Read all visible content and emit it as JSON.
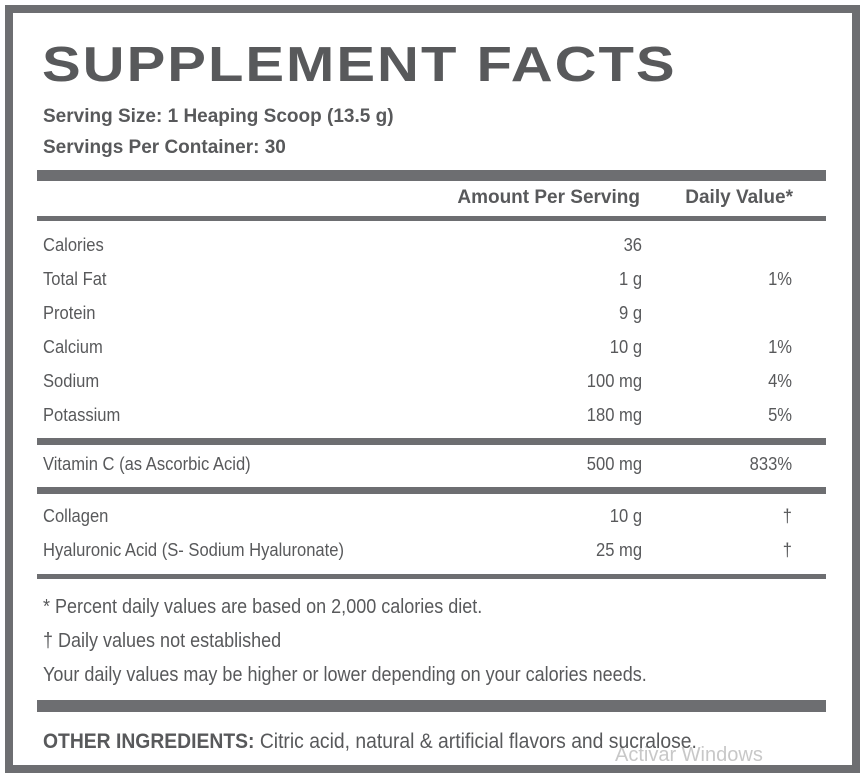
{
  "title": "SUPPLEMENT FACTS",
  "serving": [
    "Serving Size:  1 Heaping Scoop (13.5 g)",
    "Servings Per Container: 30"
  ],
  "table": {
    "header": {
      "amount": "Amount Per Serving",
      "daily_value": "Daily Value*"
    },
    "groups": [
      [
        {
          "name": "Calories",
          "amount": "36"
        },
        {
          "name": "Total Fat",
          "amount": "1 g",
          "daily_value": "1%"
        },
        {
          "name": "Protein",
          "amount": "9 g"
        },
        {
          "name": "Calcium",
          "amount": "10 g",
          "daily_value": "1%"
        },
        {
          "name": "Sodium",
          "amount": "100 mg",
          "daily_value": "4%"
        },
        {
          "name": "Potassium",
          "amount": "180 mg",
          "daily_value": "5%"
        }
      ],
      [
        {
          "name": "Vitamin C (as Ascorbic Acid)",
          "amount": "500 mg",
          "daily_value": "833%"
        }
      ],
      [
        {
          "name": "Collagen",
          "amount": "10 g",
          "daily_value": "†"
        },
        {
          "name": "Hyaluronic Acid (S- Sodium Hyaluronate)",
          "amount": "25 mg",
          "daily_value": "†"
        }
      ]
    ]
  },
  "footnotes": [
    "* Percent daily values are based on 2,000 calories diet.",
    "† Daily values not established",
    "Your daily values may be higher or lower depending on your calories needs."
  ],
  "other_ingredients": {
    "label": "OTHER INGREDIENTS:",
    "text": " Citric acid, natural & artificial flavors and sucralose."
  },
  "watermark": "Activar Windows"
}
